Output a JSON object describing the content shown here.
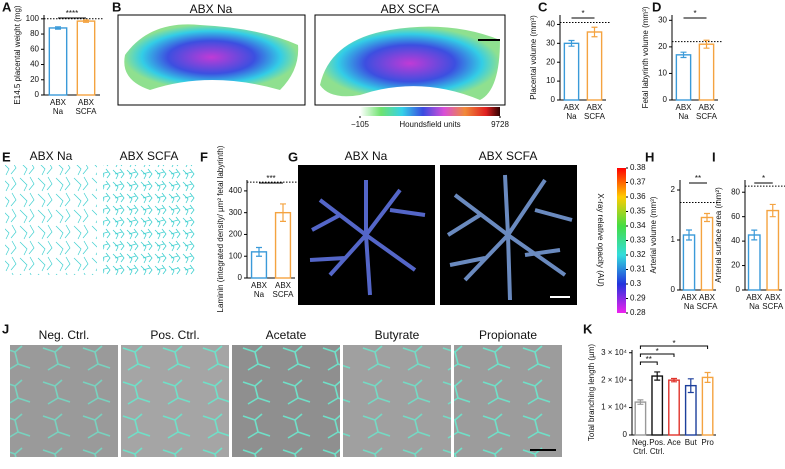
{
  "panel_letters": [
    "A",
    "B",
    "C",
    "D",
    "E",
    "F",
    "G",
    "H",
    "I",
    "J",
    "K"
  ],
  "chart_data": [
    {
      "type": "bar",
      "ylabel": "E14.5 placental weight (mg)",
      "categories": [
        "ABX Na",
        "ABX SCFA"
      ],
      "values": [
        88,
        97
      ],
      "errors": [
        1.5,
        1.5
      ],
      "colors": [
        "#3a9ad9",
        "#f4a340"
      ],
      "ylim": [
        0,
        105
      ],
      "yticks": [
        0,
        20,
        40,
        60,
        80,
        100
      ],
      "reference_line": 100,
      "significance": "****"
    },
    {
      "type": "bar",
      "ylabel": "Placental volume (mm³)",
      "categories": [
        "ABX Na",
        "ABX SCFA"
      ],
      "values": [
        30,
        36
      ],
      "errors": [
        1.5,
        2.5
      ],
      "colors": [
        "#3a9ad9",
        "#f4a340"
      ],
      "ylim": [
        0,
        45
      ],
      "yticks": [
        0,
        10,
        20,
        30,
        40
      ],
      "reference_line": 41,
      "significance": "*"
    },
    {
      "type": "bar",
      "ylabel": "Fetal labyrinth volume (mm³)",
      "categories": [
        "ABX Na",
        "ABX SCFA"
      ],
      "values": [
        17,
        21
      ],
      "errors": [
        1,
        1.5
      ],
      "colors": [
        "#3a9ad9",
        "#f4a340"
      ],
      "ylim": [
        0,
        32
      ],
      "yticks": [
        0,
        10,
        20,
        30
      ],
      "reference_line": 22,
      "significance": "*"
    },
    {
      "type": "bar",
      "ylabel": "Laminin (integrated density/ µm² fetal labyrinth)",
      "categories": [
        "ABX Na",
        "ABX SCFA"
      ],
      "values": [
        120,
        300
      ],
      "errors": [
        20,
        40
      ],
      "colors": [
        "#3a9ad9",
        "#f4a340"
      ],
      "ylim": [
        0,
        450
      ],
      "yticks": [
        0,
        100,
        200,
        300,
        400
      ],
      "reference_line": 440,
      "significance": "***"
    },
    {
      "type": "bar",
      "ylabel": "Arterial volume (mm³)",
      "categories": [
        "ABX Na",
        "ABX SCFA"
      ],
      "values": [
        1.1,
        1.45
      ],
      "errors": [
        0.1,
        0.08
      ],
      "colors": [
        "#3a9ad9",
        "#f4a340"
      ],
      "ylim": [
        0,
        2.2
      ],
      "yticks": [
        0,
        1,
        2
      ],
      "reference_line": 1.75,
      "significance": "**"
    },
    {
      "type": "bar",
      "ylabel": "Arterial surface area (mm²)",
      "categories": [
        "ABX Na",
        "ABX SCFA"
      ],
      "values": [
        45,
        65
      ],
      "errors": [
        4,
        5
      ],
      "colors": [
        "#3a9ad9",
        "#f4a340"
      ],
      "ylim": [
        0,
        90
      ],
      "yticks": [
        0,
        20,
        40,
        60,
        80
      ],
      "reference_line": 85,
      "significance": "*"
    },
    {
      "type": "bar",
      "ylabel": "Total branching length (µm)",
      "categories": [
        "Neg. Ctrl.",
        "Pos. Ctrl.",
        "Ace",
        "But",
        "Pro"
      ],
      "values": [
        12000,
        21500,
        20000,
        18000,
        21000
      ],
      "errors": [
        800,
        1500,
        600,
        2500,
        1800
      ],
      "colors": [
        "#999999",
        "#111111",
        "#e0332b",
        "#1c3f9c",
        "#f4a340"
      ],
      "ylim": [
        0,
        31000
      ],
      "yticks": [
        0,
        {
          "value": 10000,
          "label": "1 × 10⁴"
        },
        {
          "value": 20000,
          "label": "2 × 10⁴"
        },
        {
          "value": 30000,
          "label": "3 × 10⁴"
        }
      ],
      "significance": [
        {
          "between": [
            0,
            1
          ],
          "label": "**"
        },
        {
          "between": [
            0,
            2
          ],
          "label": "*"
        },
        {
          "between": [
            0,
            4
          ],
          "label": "*"
        }
      ]
    }
  ],
  "images": {
    "B": {
      "titles": [
        "ABX Na",
        "ABX SCFA"
      ],
      "colorbar": {
        "label": "Houndsfield units",
        "clim": [
          -105,
          9728
        ],
        "ticks": [
          {
            "value": -105,
            "label": "−105"
          },
          9728
        ]
      }
    },
    "E": {
      "titles": [
        "ABX Na",
        "ABX SCFA"
      ]
    },
    "G": {
      "titles": [
        "ABX Na",
        "ABX SCFA"
      ],
      "colorbar": {
        "label": "X-ray relative opacity (AU)",
        "clim": [
          0.28,
          0.38
        ],
        "ticks": [
          0.28,
          0.29,
          0.3,
          0.31,
          0.32,
          0.33,
          0.34,
          0.35,
          0.36,
          0.37,
          0.38
        ]
      }
    },
    "J": {
      "titles": [
        "Neg. Ctrl.",
        "Pos. Ctrl.",
        "Acetate",
        "Butyrate",
        "Propionate"
      ]
    }
  }
}
